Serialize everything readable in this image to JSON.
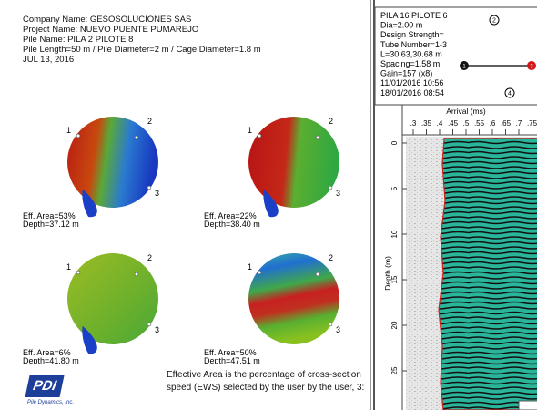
{
  "header": {
    "company": "Company Name: GESOSOLUCIONES SAS",
    "project": "Project Name: NUEVO PUENTE PUMAREJO",
    "pile": "Pile Name: PILA 2 PILOTE 8",
    "dimensions": "Pile Length=50 m / Pile Diameter=2 m / Cage Diameter=1.8 m",
    "date": "JUL 13, 2016"
  },
  "tomograms": [
    {
      "tube_labels": [
        "1",
        "2",
        "3"
      ],
      "eff_area": "Eff. Area=53%",
      "depth": "Depth=37.12 m"
    },
    {
      "tube_labels": [
        "1",
        "2",
        "3"
      ],
      "eff_area": "Eff. Area=22%",
      "depth": "Depth=38.40 m"
    },
    {
      "tube_labels": [
        "1",
        "2",
        "3"
      ],
      "eff_area": "Eff. Area=6%",
      "depth": "Depth=41.80 m"
    },
    {
      "tube_labels": [
        "1",
        "2",
        "3"
      ],
      "eff_area": "Eff. Area=50%",
      "depth": "Depth=47.51 m"
    }
  ],
  "note": [
    "Effective Area is the percentage of cross-section",
    "speed (EWS) selected by the user by the user, 3:"
  ],
  "logo": {
    "mark": "PDI",
    "name": "Pile Dynamics, Inc."
  },
  "profile": {
    "info": [
      "PILA 16 PILOTE 6",
      "Dia=2.00 m",
      "Design Strength=",
      "Tube Number=1-3",
      "L=30.63,30.68 m",
      "Spacing=1.58 m",
      "Gain=157 (x8)",
      "11/01/2016 10:56",
      "18/01/2016 08:54"
    ],
    "icons": [
      "2",
      "4"
    ],
    "tube_markers": [
      "1",
      "3"
    ],
    "x_axis_title": "Arrival (ms)",
    "x_ticks": [
      ".3",
      ".35",
      ".4",
      ".45",
      ".5",
      ".55",
      ".6",
      ".65",
      ".7",
      ".75"
    ],
    "y_axis_title": "Depth (m)",
    "y_ticks": [
      "0",
      "5",
      "10",
      "15",
      "20",
      "25"
    ]
  }
}
